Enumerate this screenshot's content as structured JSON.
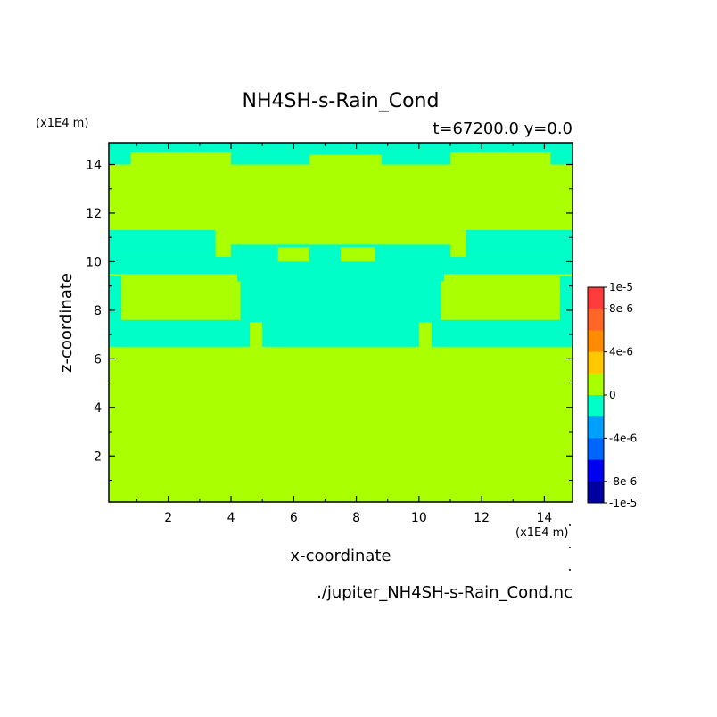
{
  "chart_data": {
    "type": "heatmap",
    "title": "NH4SH-s-Rain_Cond",
    "subtitle": "t=67200.0 y=0.0",
    "xlabel": "x-coordinate",
    "ylabel": "z-coordinate",
    "x_unit_label": "(x1E4 m)",
    "y_unit_label": "(x1E4 m)",
    "xlim": [
      0.1,
      14.9
    ],
    "ylim": [
      0.1,
      14.9
    ],
    "x_ticks": [
      2,
      4,
      6,
      8,
      10,
      12,
      14
    ],
    "y_ticks": [
      2,
      4,
      6,
      8,
      10,
      12,
      14
    ],
    "x_tick_labels": [
      "2",
      "4",
      "6",
      "8",
      "10",
      "12",
      "14"
    ],
    "y_tick_labels": [
      "2",
      "4",
      "6",
      "8",
      "10",
      "12",
      "14"
    ],
    "background_level_color": "#aaff00",
    "negative_level_color": "#00ffc8",
    "regions_negative": [
      {
        "x": [
          0.1,
          14.9
        ],
        "z": [
          14.0,
          14.9
        ]
      },
      {
        "x": [
          0.1,
          3.5
        ],
        "z": [
          10.2,
          11.3
        ]
      },
      {
        "x": [
          11.5,
          14.9
        ],
        "z": [
          10.2,
          11.3
        ]
      },
      {
        "x": [
          4.0,
          11.0
        ],
        "z": [
          9.2,
          10.7
        ]
      },
      {
        "x": [
          0.1,
          4.0
        ],
        "z": [
          9.5,
          10.2
        ]
      },
      {
        "x": [
          11.0,
          14.9
        ],
        "z": [
          9.5,
          10.2
        ]
      },
      {
        "x": [
          4.3,
          10.7
        ],
        "z": [
          7.5,
          9.3
        ]
      },
      {
        "x": [
          5.0,
          10.0
        ],
        "z": [
          6.5,
          7.6
        ]
      },
      {
        "x": [
          0.1,
          4.6
        ],
        "z": [
          6.5,
          7.6
        ]
      },
      {
        "x": [
          10.4,
          14.9
        ],
        "z": [
          6.5,
          7.6
        ]
      },
      {
        "x": [
          0.1,
          0.5
        ],
        "z": [
          7.5,
          9.4
        ]
      },
      {
        "x": [
          14.5,
          14.9
        ],
        "z": [
          7.5,
          9.4
        ]
      }
    ],
    "regions_background": [
      {
        "x": [
          0.6,
          4.2
        ],
        "z": [
          7.7,
          9.5
        ]
      },
      {
        "x": [
          10.8,
          14.4
        ],
        "z": [
          7.7,
          9.5
        ]
      },
      {
        "x": [
          5.5,
          6.5
        ],
        "z": [
          10.0,
          10.6
        ]
      },
      {
        "x": [
          7.5,
          8.6
        ],
        "z": [
          10.0,
          10.6
        ]
      },
      {
        "x": [
          0.8,
          4.0
        ],
        "z": [
          14.0,
          14.5
        ]
      },
      {
        "x": [
          6.5,
          8.8
        ],
        "z": [
          14.0,
          14.4
        ]
      },
      {
        "x": [
          11.0,
          14.2
        ],
        "z": [
          14.0,
          14.5
        ]
      }
    ],
    "colorbar": {
      "levels": [
        "1e-5",
        "8e-6",
        "4e-6",
        "0",
        "-4e-6",
        "-8e-6",
        "-1e-5"
      ],
      "colors": [
        "#ff3c3c",
        "#ff6428",
        "#ff8c00",
        "#ffc800",
        "#aaff00",
        "#00ffc8",
        "#00a0ff",
        "#0064ff",
        "#0000f0",
        "#0000a0"
      ]
    },
    "footer": "./jupiter_NH4SH-s-Rain_Cond.nc"
  }
}
